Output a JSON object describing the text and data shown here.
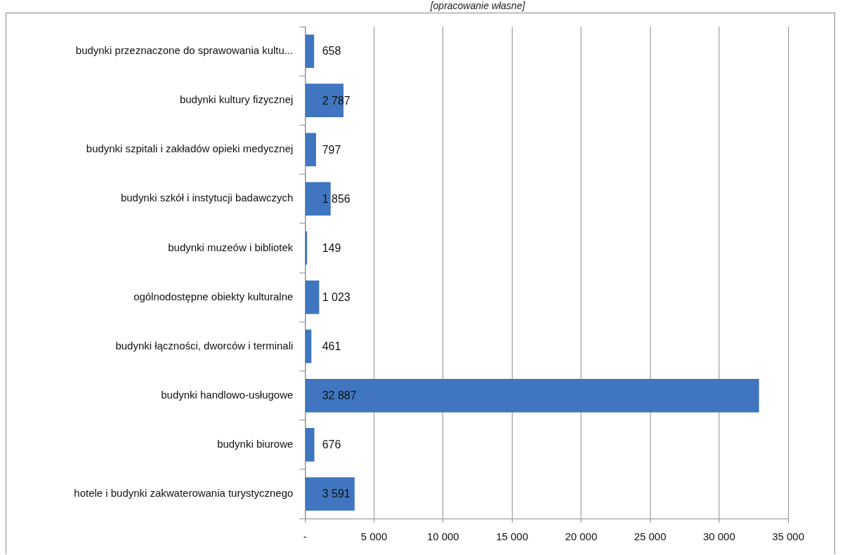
{
  "chart_data": {
    "type": "bar",
    "orientation": "horizontal",
    "annotations": [
      "[opracowanie własne]"
    ],
    "categories": [
      "budynki przeznaczone do sprawowania kultu...",
      "budynki kultury fizycznej",
      "budynki szpitali i zakładów opieki medycznej",
      "budynki szkół i instytucji badawczych",
      "budynki muzeów i bibliotek",
      "ogólnodostępne obiekty kulturalne",
      "budynki łączności, dworców i terminali",
      "budynki handlowo-usługowe",
      "budynki biurowe",
      "hotele i budynki zakwaterowania turystycznego"
    ],
    "values": [
      658,
      2787,
      797,
      1856,
      149,
      1023,
      461,
      32887,
      676,
      3591
    ],
    "value_labels": [
      "658",
      "2 787",
      "797",
      "1 856",
      "149",
      "1 023",
      "461",
      "32 887",
      "676",
      "3 591"
    ],
    "color": "#3f76bf",
    "xlim": [
      0,
      35000
    ],
    "xticks": [
      {
        "value": 0,
        "label": "-"
      },
      {
        "value": 5000,
        "label": "5 000"
      },
      {
        "value": 10000,
        "label": "10 000"
      },
      {
        "value": 15000,
        "label": "15 000"
      },
      {
        "value": 20000,
        "label": "20 000"
      },
      {
        "value": 25000,
        "label": "25 000"
      },
      {
        "value": 30000,
        "label": "30 000"
      },
      {
        "value": 35000,
        "label": "35 000"
      }
    ],
    "grid": "x"
  }
}
